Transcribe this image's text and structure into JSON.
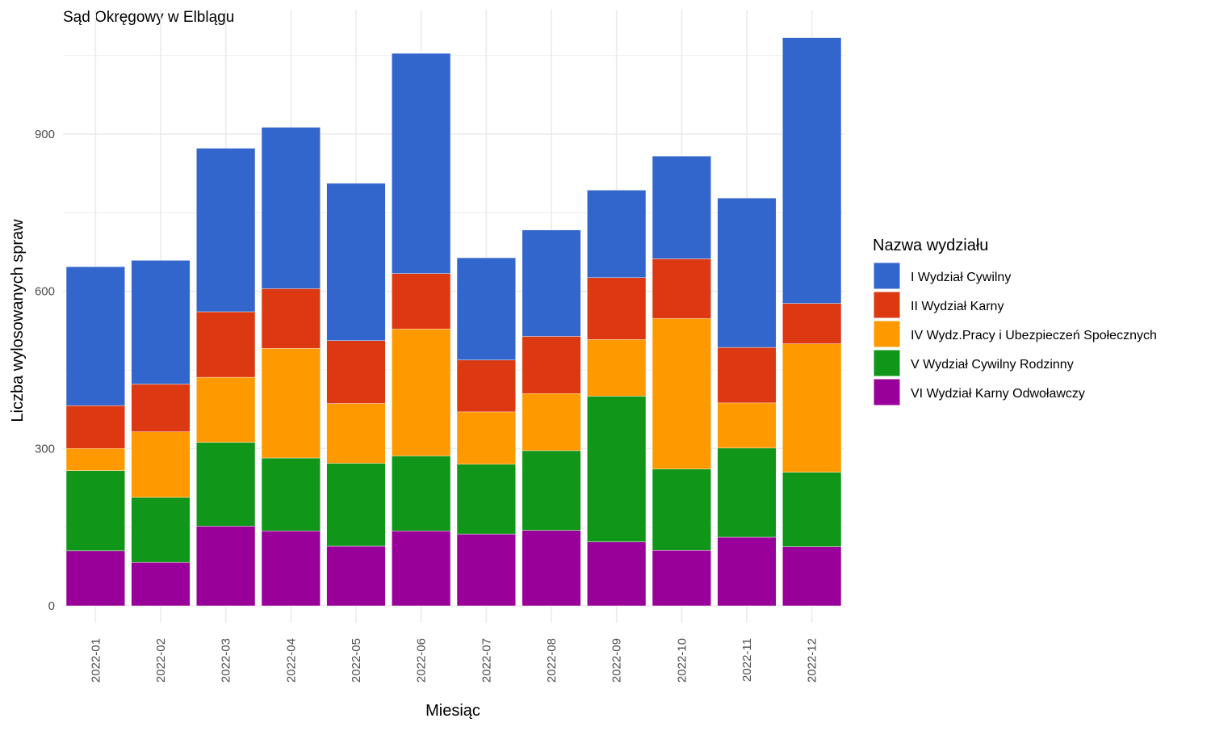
{
  "chart_data": {
    "type": "bar",
    "stacked": true,
    "title": "Sąd Okręgowy w Elblągu",
    "xlabel": "Miesiąc",
    "ylabel": "Liczba wylosowanych spraw",
    "ylim": [
      0,
      1100
    ],
    "y_ticks": [
      0,
      300,
      600,
      900
    ],
    "grid": true,
    "legend_title": "Nazwa wydziału",
    "legend_position": "right",
    "categories": [
      "2022-01",
      "2022-02",
      "2022-03",
      "2022-04",
      "2022-05",
      "2022-06",
      "2022-07",
      "2022-08",
      "2022-09",
      "2022-10",
      "2022-11",
      "2022-12"
    ],
    "series": [
      {
        "name": "VI Wydział Karny Odwoławczy",
        "color": "#990099",
        "values": [
          105,
          83,
          152,
          143,
          114,
          143,
          137,
          144,
          122,
          106,
          131,
          113
        ]
      },
      {
        "name": "V Wydział Cywilny Rodzinny",
        "color": "#109618",
        "values": [
          153,
          124,
          160,
          139,
          158,
          143,
          133,
          152,
          278,
          155,
          170,
          142
        ]
      },
      {
        "name": "IV Wydz.Pracy i Ubezpieczeń Społecznych",
        "color": "#FF9900",
        "values": [
          42,
          125,
          124,
          209,
          114,
          242,
          100,
          109,
          108,
          287,
          86,
          245
        ]
      },
      {
        "name": "II Wydział Karny",
        "color": "#DC3912",
        "values": [
          82,
          91,
          125,
          114,
          120,
          106,
          99,
          109,
          118,
          114,
          106,
          77
        ]
      },
      {
        "name": "I Wydział Cywilny",
        "color": "#3366CC",
        "values": [
          265,
          236,
          312,
          308,
          300,
          420,
          195,
          203,
          167,
          196,
          285,
          507
        ]
      }
    ],
    "legend_order": [
      "I Wydział Cywilny",
      "II Wydział Karny",
      "IV Wydz.Pracy i Ubezpieczeń Społecznych",
      "V Wydział Cywilny Rodzinny",
      "VI Wydział Karny Odwoławczy"
    ]
  }
}
